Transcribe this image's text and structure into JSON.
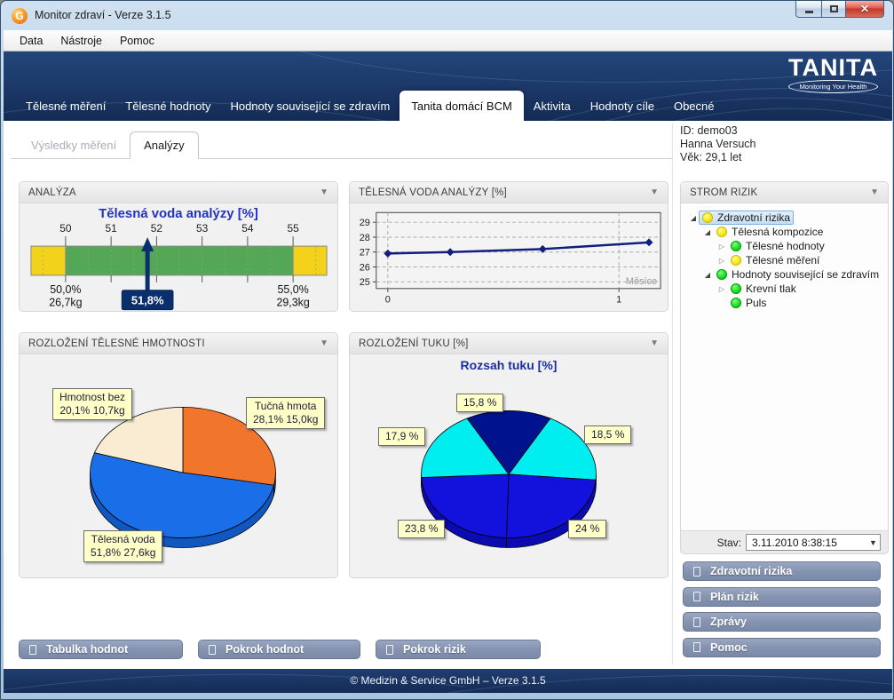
{
  "window": {
    "title": "Monitor zdraví - Verze 3.1.5",
    "icon": "app-logo-g",
    "controls": [
      "minimize",
      "maximize",
      "close"
    ]
  },
  "menu": [
    "Data",
    "Nástroje",
    "Pomoc"
  ],
  "brand": {
    "name": "TANITA",
    "tagline": "Monitoring Your Health"
  },
  "nav_tabs": [
    {
      "label": "Tělesné měření",
      "active": false
    },
    {
      "label": "Tělesné hodnoty",
      "active": false
    },
    {
      "label": "Hodnoty související se zdravím",
      "active": false
    },
    {
      "label": "Tanita domácí BCM",
      "active": true
    },
    {
      "label": "Aktivita",
      "active": false
    },
    {
      "label": "Hodnoty cíle",
      "active": false
    },
    {
      "label": "Obecné",
      "active": false
    }
  ],
  "sub_tabs": [
    {
      "label": "Výsledky měření",
      "active": false
    },
    {
      "label": "Analýzy",
      "active": true
    }
  ],
  "patient": {
    "id": "ID: demo03",
    "name": "Hanna Versuch",
    "age": "Věk: 29,1 let"
  },
  "panels": {
    "analyza": {
      "header": "ANALÝZA"
    },
    "voda": {
      "header": "TĚLESNÁ VODA ANALÝZY [%]"
    },
    "hmotnost": {
      "header": "ROZLOŽENÍ TĚLESNÉ HMOTNOSTI"
    },
    "tuku": {
      "header": "ROZLOŽENÍ TUKU [%]"
    },
    "strom": {
      "header": "STROM RIZIK"
    }
  },
  "tree": {
    "items": [
      {
        "label": "Zdravotní rizika",
        "level": 0,
        "expander": "expanded",
        "status": "yellow",
        "selected": true
      },
      {
        "label": "Tělesná kompozice",
        "level": 1,
        "expander": "expanded",
        "status": "yellow",
        "selected": false
      },
      {
        "label": "Tělesné hodnoty",
        "level": 2,
        "expander": "collapsed",
        "status": "green",
        "selected": false
      },
      {
        "label": "Tělesné měření",
        "level": 2,
        "expander": "collapsed",
        "status": "yellow",
        "selected": false
      },
      {
        "label": "Hodnoty související se zdravím",
        "level": 1,
        "expander": "expanded",
        "status": "green",
        "selected": false
      },
      {
        "label": "Krevní tlak",
        "level": 2,
        "expander": "collapsed",
        "status": "green",
        "selected": false
      },
      {
        "label": "Puls",
        "level": 2,
        "expander": "none",
        "status": "green",
        "selected": false
      }
    ]
  },
  "stav": {
    "label": "Stav:",
    "value": "3.11.2010 8:38:15"
  },
  "side_buttons": [
    "Zdravotní rizika",
    "Plán rizik",
    "Zprávy",
    "Pomoc"
  ],
  "bottom_buttons": [
    "Tabulka hodnot",
    "Pokrok hodnot",
    "Pokrok rizik"
  ],
  "footer": "© Medizin & Service GmbH – Verze 3.1.5",
  "chart_data": [
    {
      "type": "gauge",
      "title": "Tělesná voda analýzy [%]",
      "ticks": [
        50,
        51,
        52,
        53,
        54,
        55
      ],
      "axis_min": 49.24,
      "axis_max": 55.74,
      "green_range": [
        50,
        55
      ],
      "value": 51.8,
      "value_label": "51,8%",
      "range_labels": {
        "min": [
          "50,0%",
          "26,7kg"
        ],
        "max": [
          "55,0%",
          "29,3kg"
        ]
      },
      "colors": {
        "yellow": "#f2d21b",
        "green": "#54a754",
        "pointer": "#0a2f6e"
      }
    },
    {
      "type": "line",
      "title": "TĚLESNÁ VODA ANALÝZY [%]",
      "xlabel": "Měsíce",
      "x_ticks": [
        0,
        1
      ],
      "y_ticks": [
        25,
        26,
        27,
        28,
        29
      ],
      "xlim": [
        -0.05,
        1.18
      ],
      "ylim": [
        24.55,
        29.65
      ],
      "points": [
        [
          0,
          26.9
        ],
        [
          0.27,
          27.0
        ],
        [
          0.67,
          27.2
        ],
        [
          1.13,
          27.65
        ]
      ],
      "color": "#121d7e",
      "grid": "dashed"
    },
    {
      "type": "pie",
      "title": "",
      "start_deg": 0,
      "slices": [
        {
          "name": "Tučná hmota",
          "value": 28.1,
          "color": "#f1762c"
        },
        {
          "name": "Tělesná voda",
          "value": 51.8,
          "color": "#1a6fe8"
        },
        {
          "name": "Hmotnost bez",
          "value": 20.1,
          "color": "#f9ecd2"
        }
      ],
      "rim_color": "#1157c0",
      "labels": [
        {
          "lines": [
            "Hmotnost bez",
            "20,1% 10,7kg"
          ],
          "x": 37,
          "y": 38
        },
        {
          "lines": [
            "Tučná hmota",
            "28,1% 15,0kg"
          ],
          "x": 255,
          "y": 48
        },
        {
          "lines": [
            "Tělesná voda",
            "51,8% 27,6kg"
          ],
          "x": 72,
          "y": 198
        }
      ]
    },
    {
      "type": "pie",
      "title": "Rozsah tuku [%]",
      "start_deg": -28.44,
      "slices": [
        {
          "name": "15,8 %",
          "value": 15.8,
          "color": "#00128e"
        },
        {
          "name": "18,5 %",
          "value": 18.5,
          "color": "#00eef0"
        },
        {
          "name": "24 %",
          "value": 24,
          "color": "#1212dc"
        },
        {
          "name": "23,8 %",
          "value": 23.8,
          "color": "#1212dc"
        },
        {
          "name": "17,9 %",
          "value": 17.9,
          "color": "#00eef0"
        }
      ],
      "rim_color": "#0b0bb0",
      "labels": [
        {
          "lines": [
            "15,8 %"
          ],
          "x": 120,
          "y": 44
        },
        {
          "lines": [
            "17,9 %"
          ],
          "x": 32,
          "y": 82
        },
        {
          "lines": [
            "18,5 %"
          ],
          "x": 264,
          "y": 80
        },
        {
          "lines": [
            "23,8 %"
          ],
          "x": 54,
          "y": 186
        },
        {
          "lines": [
            "24 %"
          ],
          "x": 246,
          "y": 186
        }
      ]
    }
  ]
}
